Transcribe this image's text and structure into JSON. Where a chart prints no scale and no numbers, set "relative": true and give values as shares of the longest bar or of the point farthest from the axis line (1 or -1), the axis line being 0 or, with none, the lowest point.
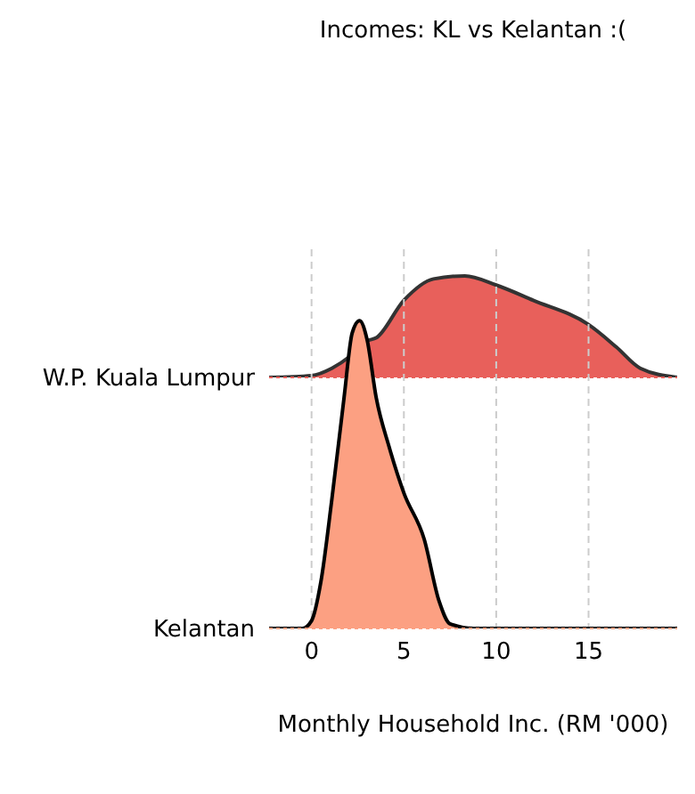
{
  "chart_data": [
    {
      "type": "area",
      "title": "Incomes: KL vs Kelantan :(",
      "relative": true,
      "xlim": [
        -2.3,
        19.8
      ],
      "xticks": [
        0,
        5,
        10,
        15
      ],
      "grid": "x",
      "tick_labels": false,
      "series": [
        {
          "name": "W.P. Kuala Lumpur",
          "color": "#e8605b",
          "x": [
            -2.3,
            0,
            1.1,
            2.1,
            3,
            3.5,
            5,
            6.6,
            8.3,
            10,
            12,
            15,
            16.5,
            17.8,
            19.8
          ],
          "values": [
            0,
            0.018,
            0.09,
            0.21,
            0.36,
            0.39,
            0.76,
            0.97,
            1,
            0.91,
            0.76,
            0.52,
            0.3,
            0.09,
            0
          ]
        }
      ]
    },
    {
      "type": "area",
      "xlabel": "Monthly Household Inc. (RM '000)",
      "relative": true,
      "xlim": [
        -2.3,
        19.8
      ],
      "xticks": [
        0,
        5,
        10,
        15
      ],
      "grid": "x",
      "tick_labels": "x",
      "series": [
        {
          "name": "Kelantan",
          "color": "#fca082",
          "x": [
            -2.3,
            -0.5,
            0,
            0.5,
            1.1,
            1.76,
            2.2,
            2.6,
            3,
            3.5,
            4.2,
            5,
            6.1,
            6.9,
            7.5,
            8.8,
            19.8
          ],
          "values": [
            0,
            0,
            0.025,
            0.15,
            0.42,
            0.75,
            0.96,
            1,
            0.94,
            0.75,
            0.59,
            0.44,
            0.29,
            0.09,
            0.015,
            0,
            0
          ]
        }
      ]
    }
  ]
}
